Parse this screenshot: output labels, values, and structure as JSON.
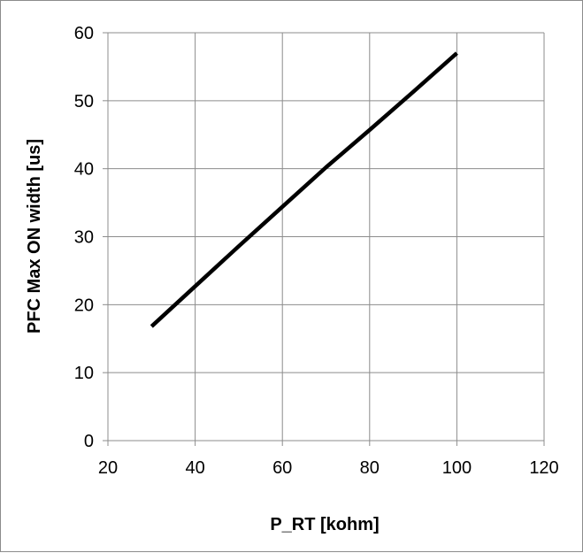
{
  "chart_data": {
    "type": "line",
    "title": "",
    "xlabel": "P_RT [kohm]",
    "ylabel": "PFC Max ON width [us]",
    "xlim": [
      20,
      120
    ],
    "ylim": [
      0,
      60
    ],
    "x_ticks": [
      20,
      40,
      60,
      80,
      100,
      120
    ],
    "y_ticks": [
      0,
      10,
      20,
      30,
      40,
      50,
      60
    ],
    "grid": true,
    "legend": "none",
    "series": [
      {
        "color": "#000000",
        "x": [
          30,
          40,
          50,
          60,
          70,
          80,
          90,
          100
        ],
        "y": [
          16.8,
          22.7,
          28.6,
          34.4,
          40.2,
          45.7,
          51.3,
          57.0
        ]
      }
    ]
  }
}
